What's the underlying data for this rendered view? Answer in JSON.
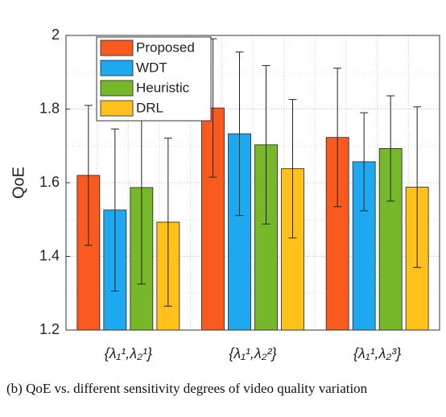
{
  "chart_data": {
    "type": "bar",
    "ylabel": "QoE",
    "categories": [
      "{λ₁¹,λ₂¹}",
      "{λ₁¹,λ₂²}",
      "{λ₁¹,λ₂³}"
    ],
    "series": [
      {
        "name": "Proposed",
        "color": "#fa5a1e",
        "values": [
          1.62,
          1.803,
          1.723
        ],
        "errors": [
          0.19,
          0.188,
          0.188
        ]
      },
      {
        "name": "WDT",
        "color": "#1ea8f0",
        "values": [
          1.526,
          1.733,
          1.657
        ],
        "errors": [
          0.22,
          0.222,
          0.133
        ]
      },
      {
        "name": "Heuristic",
        "color": "#77b82a",
        "values": [
          1.587,
          1.703,
          1.693
        ],
        "errors": [
          0.262,
          0.215,
          0.143
        ]
      },
      {
        "name": "DRL",
        "color": "#ffc11a",
        "values": [
          1.493,
          1.638,
          1.588
        ],
        "errors": [
          0.228,
          0.188,
          0.218
        ]
      }
    ],
    "ylim": [
      1.2,
      2
    ],
    "yticks": [
      1.2,
      1.4,
      1.6,
      1.8,
      2
    ],
    "grid": true,
    "caption": "(b) QoE vs. different sensitivity degrees of video quality variation"
  }
}
